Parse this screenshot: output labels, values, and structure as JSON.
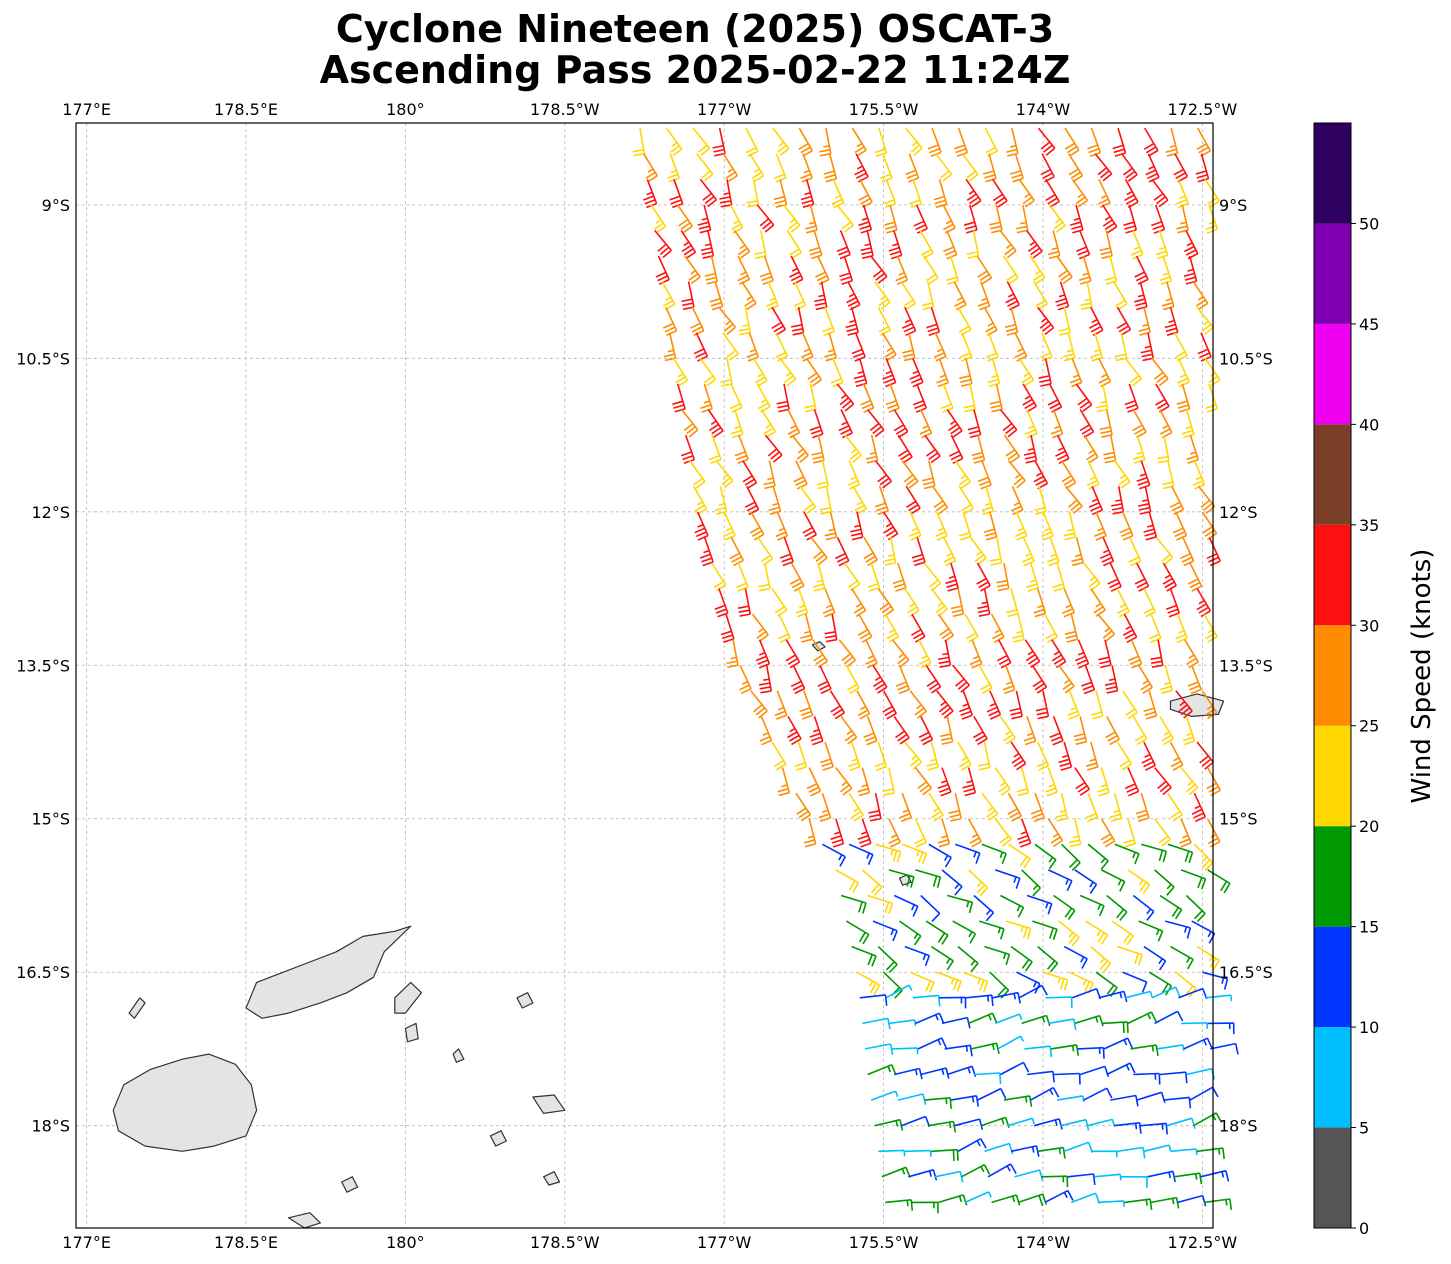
{
  "title": {
    "line1": "Cyclone Nineteen (2025) OSCAT-3",
    "line2": "Ascending Pass 2025-02-22 11:24Z"
  },
  "map": {
    "lon_range": [
      176.9,
      187.6
    ],
    "lat_range": [
      -19.0,
      -8.2
    ],
    "x_ticks": [
      {
        "lon": 177.0,
        "label": "177°E"
      },
      {
        "lon": 178.5,
        "label": "178.5°E"
      },
      {
        "lon": 180.0,
        "label": "180°"
      },
      {
        "lon": 181.5,
        "label": "178.5°W"
      },
      {
        "lon": 183.0,
        "label": "177°W"
      },
      {
        "lon": 184.5,
        "label": "175.5°W"
      },
      {
        "lon": 186.0,
        "label": "174°W"
      },
      {
        "lon": 187.5,
        "label": "172.5°W"
      }
    ],
    "y_ticks": [
      {
        "lat": -9.0,
        "label": "9°S"
      },
      {
        "lat": -10.5,
        "label": "10.5°S"
      },
      {
        "lat": -12.0,
        "label": "12°S"
      },
      {
        "lat": -13.5,
        "label": "13.5°S"
      },
      {
        "lat": -15.0,
        "label": "15°S"
      },
      {
        "lat": -16.5,
        "label": "16.5°S"
      },
      {
        "lat": -18.0,
        "label": "18°S"
      }
    ],
    "gridlines": true,
    "islands": [
      {
        "name": "Viti Levu",
        "outline": [
          [
            177.25,
            -17.85
          ],
          [
            177.35,
            -17.6
          ],
          [
            177.6,
            -17.45
          ],
          [
            177.9,
            -17.35
          ],
          [
            178.15,
            -17.3
          ],
          [
            178.4,
            -17.4
          ],
          [
            178.55,
            -17.6
          ],
          [
            178.6,
            -17.85
          ],
          [
            178.5,
            -18.1
          ],
          [
            178.2,
            -18.2
          ],
          [
            177.9,
            -18.25
          ],
          [
            177.55,
            -18.2
          ],
          [
            177.3,
            -18.05
          ]
        ]
      },
      {
        "name": "Vanua Levu",
        "outline": [
          [
            178.5,
            -16.85
          ],
          [
            178.6,
            -16.6
          ],
          [
            178.85,
            -16.5
          ],
          [
            179.1,
            -16.4
          ],
          [
            179.35,
            -16.3
          ],
          [
            179.6,
            -16.15
          ],
          [
            179.9,
            -16.1
          ],
          [
            180.05,
            -16.05
          ],
          [
            179.8,
            -16.3
          ],
          [
            179.7,
            -16.55
          ],
          [
            179.45,
            -16.7
          ],
          [
            179.2,
            -16.8
          ],
          [
            178.9,
            -16.9
          ],
          [
            178.65,
            -16.95
          ]
        ]
      },
      {
        "name": "Taveuni",
        "outline": [
          [
            179.9,
            -16.75
          ],
          [
            180.05,
            -16.6
          ],
          [
            180.15,
            -16.7
          ],
          [
            180.0,
            -16.9
          ],
          [
            179.9,
            -16.9
          ]
        ]
      },
      {
        "name": "Upolu",
        "outline": [
          [
            187.2,
            -13.85
          ],
          [
            187.45,
            -13.78
          ],
          [
            187.7,
            -13.85
          ],
          [
            187.65,
            -13.98
          ],
          [
            187.4,
            -14.0
          ],
          [
            187.2,
            -13.93
          ]
        ]
      },
      {
        "name": "Rotuma",
        "outline": [
          [
            183.83,
            -13.3
          ],
          [
            183.9,
            -13.27
          ],
          [
            183.95,
            -13.32
          ],
          [
            183.88,
            -13.36
          ]
        ]
      },
      {
        "name": "Ono-i-Lau",
        "outline": [
          [
            181.2,
            -17.72
          ],
          [
            181.4,
            -17.7
          ],
          [
            181.5,
            -17.85
          ],
          [
            181.3,
            -17.88
          ]
        ]
      },
      {
        "name": "Niuafo'ou",
        "outline": [
          [
            184.65,
            -15.58
          ],
          [
            184.72,
            -15.55
          ],
          [
            184.76,
            -15.62
          ],
          [
            184.68,
            -15.65
          ]
        ]
      },
      {
        "name": "Lakeba",
        "outline": [
          [
            180.8,
            -18.1
          ],
          [
            180.9,
            -18.05
          ],
          [
            180.95,
            -18.15
          ],
          [
            180.85,
            -18.2
          ]
        ]
      },
      {
        "name": "Kadavu",
        "outline": [
          [
            178.9,
            -18.9
          ],
          [
            179.1,
            -18.85
          ],
          [
            179.2,
            -18.95
          ],
          [
            179.05,
            -19.0
          ]
        ]
      },
      {
        "name": "Lau islet 1",
        "outline": [
          [
            181.3,
            -18.5
          ],
          [
            181.4,
            -18.45
          ],
          [
            181.45,
            -18.55
          ],
          [
            181.35,
            -18.58
          ]
        ]
      },
      {
        "name": "Lau islet 2",
        "outline": [
          [
            180.0,
            -17.05
          ],
          [
            180.1,
            -17.0
          ],
          [
            180.12,
            -17.15
          ],
          [
            180.02,
            -17.18
          ]
        ]
      },
      {
        "name": "Moala",
        "outline": [
          [
            179.4,
            -18.55
          ],
          [
            179.5,
            -18.5
          ],
          [
            179.55,
            -18.6
          ],
          [
            179.45,
            -18.65
          ]
        ]
      },
      {
        "name": "Mago",
        "outline": [
          [
            180.45,
            -17.3
          ],
          [
            180.5,
            -17.25
          ],
          [
            180.55,
            -17.35
          ],
          [
            180.48,
            -17.38
          ]
        ]
      },
      {
        "name": "Tuvana",
        "outline": [
          [
            181.05,
            -16.75
          ],
          [
            181.15,
            -16.7
          ],
          [
            181.2,
            -16.8
          ],
          [
            181.1,
            -16.85
          ]
        ]
      },
      {
        "name": "Yasawa",
        "outline": [
          [
            177.4,
            -16.9
          ],
          [
            177.5,
            -16.75
          ],
          [
            177.55,
            -16.8
          ],
          [
            177.45,
            -16.95
          ]
        ]
      }
    ]
  },
  "colorbar": {
    "title": "Wind Speed (knots)",
    "range": [
      0,
      55
    ],
    "bins": [
      {
        "from": 0,
        "to": 5,
        "color": "#555555"
      },
      {
        "from": 5,
        "to": 10,
        "color": "#00bfff"
      },
      {
        "from": 10,
        "to": 15,
        "color": "#0034ff"
      },
      {
        "from": 15,
        "to": 20,
        "color": "#009900"
      },
      {
        "from": 20,
        "to": 25,
        "color": "#ffd700"
      },
      {
        "from": 25,
        "to": 30,
        "color": "#ff8c00"
      },
      {
        "from": 30,
        "to": 35,
        "color": "#ff1010"
      },
      {
        "from": 35,
        "to": 40,
        "color": "#7b3f28"
      },
      {
        "from": 40,
        "to": 45,
        "color": "#f000f0"
      },
      {
        "from": 45,
        "to": 50,
        "color": "#7f00b0"
      },
      {
        "from": 50,
        "to": 55,
        "color": "#2e0060"
      }
    ],
    "ticks": [
      {
        "value": 0,
        "label": "0"
      },
      {
        "value": 5,
        "label": "5"
      },
      {
        "value": 10,
        "label": "10"
      },
      {
        "value": 15,
        "label": "15"
      },
      {
        "value": 20,
        "label": "20"
      },
      {
        "value": 25,
        "label": "25"
      },
      {
        "value": 30,
        "label": "30"
      },
      {
        "value": 35,
        "label": "35"
      },
      {
        "value": 40,
        "label": "40"
      },
      {
        "value": 45,
        "label": "45"
      },
      {
        "value": 50,
        "label": "50"
      }
    ]
  },
  "wind_field": {
    "swath_west_edge": [
      [
        -8.2,
        182.15
      ],
      [
        -10.0,
        182.4
      ],
      [
        -12.0,
        182.7
      ],
      [
        -13.5,
        183.1
      ],
      [
        -14.5,
        183.5
      ],
      [
        -15.5,
        184.0
      ],
      [
        -16.5,
        184.2
      ],
      [
        -17.5,
        184.3
      ],
      [
        -19.0,
        184.5
      ]
    ],
    "swath_east_edge": 187.6,
    "row_spacing_deg": 0.25,
    "col_spacing_deg": 0.25,
    "regimes": [
      {
        "region": "north",
        "lat_min": -15.0,
        "lat_max": -8.2,
        "direction_from_deg": 155,
        "speed_kt": [
          20,
          35
        ]
      },
      {
        "region": "transition",
        "lat_min": -16.5,
        "lat_max": -15.0,
        "direction_from_deg": 120,
        "speed_kt": [
          12,
          25
        ]
      },
      {
        "region": "south",
        "lat_min": -19.0,
        "lat_max": -16.5,
        "direction_from_deg": 75,
        "speed_kt": [
          5,
          18
        ]
      }
    ]
  }
}
